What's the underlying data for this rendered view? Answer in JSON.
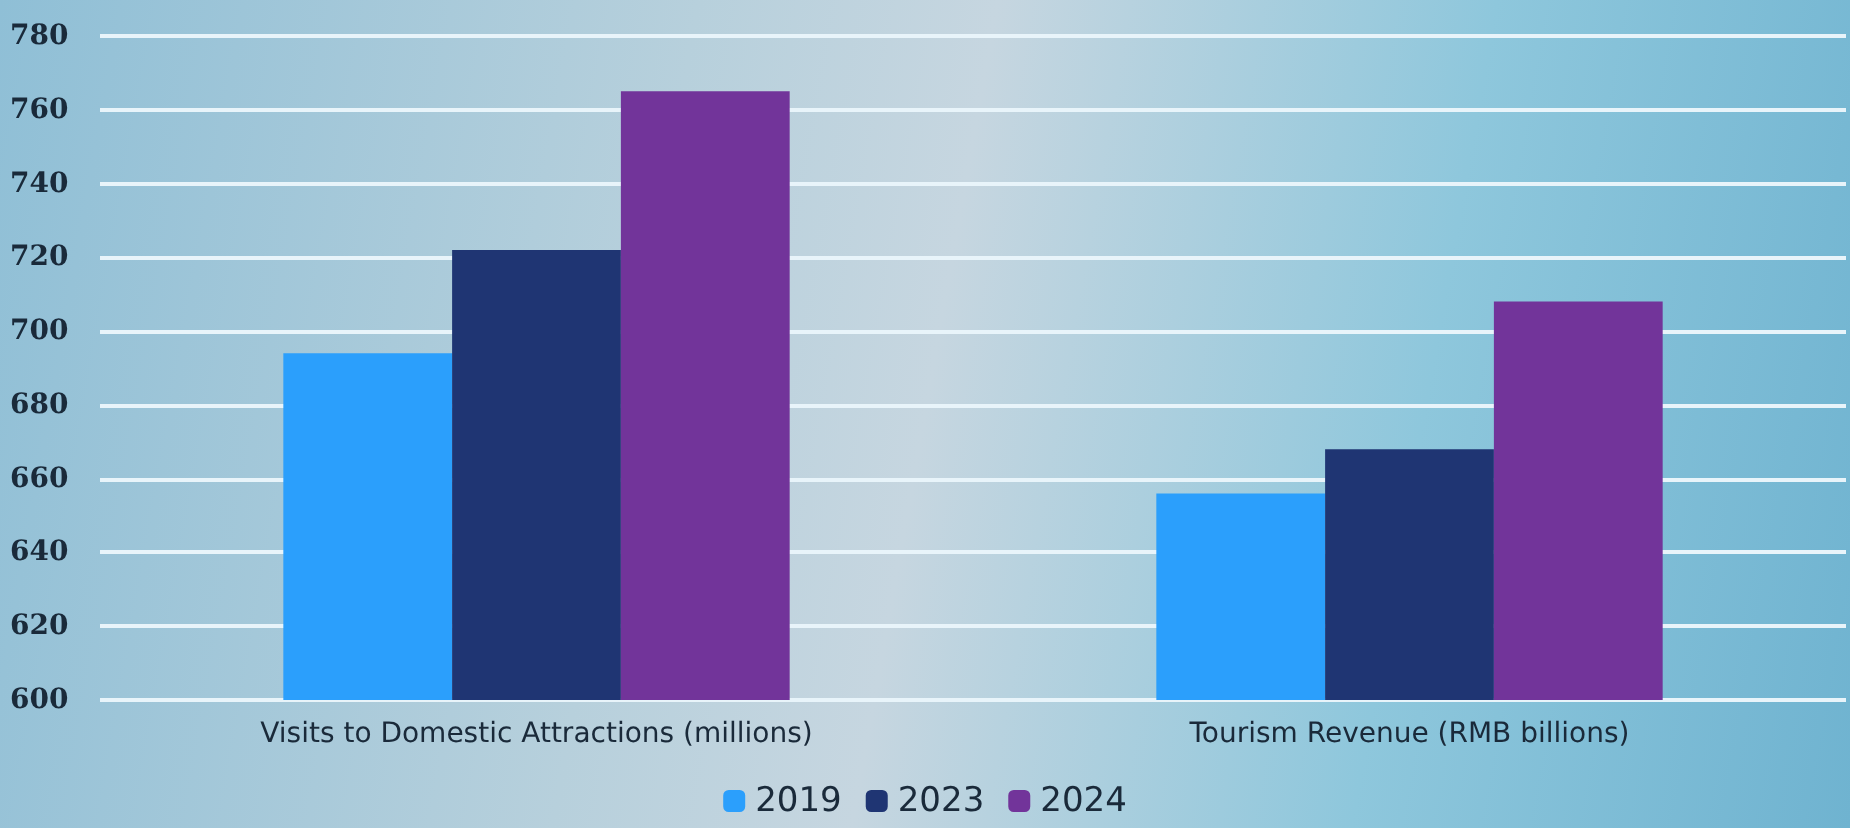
{
  "chart_data": {
    "type": "bar",
    "categories": [
      "Visits to Domestic Attractions (millions)",
      "Tourism Revenue (RMB billions)"
    ],
    "series": [
      {
        "name": "2019",
        "color": "#2b9ffc",
        "values": [
          694,
          656
        ]
      },
      {
        "name": "2023",
        "color": "#1f3573",
        "values": [
          722,
          668
        ]
      },
      {
        "name": "2024",
        "color": "#72349a",
        "values": [
          765,
          708
        ]
      }
    ],
    "ylim": [
      600,
      780
    ],
    "yticks": [
      600,
      620,
      640,
      660,
      680,
      700,
      720,
      740,
      760,
      780
    ],
    "grid": "y",
    "legend": "bottom"
  }
}
